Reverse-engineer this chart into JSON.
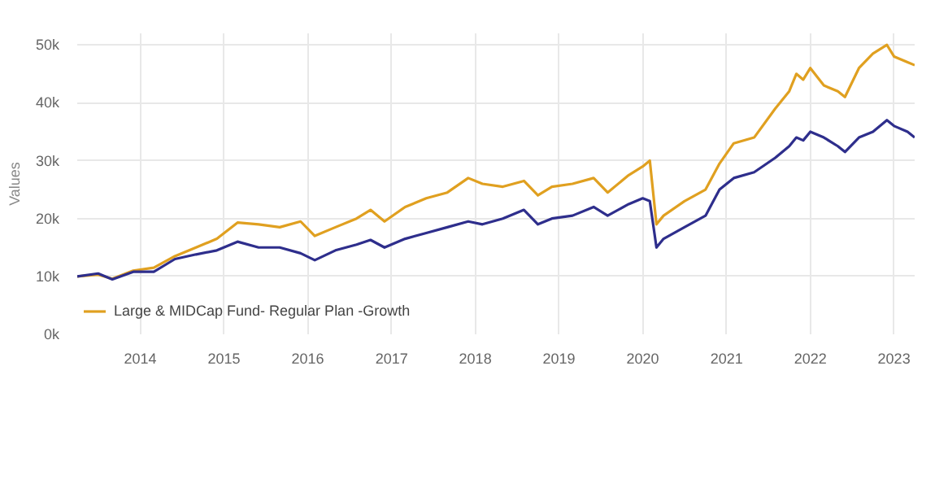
{
  "chart_data": {
    "type": "line",
    "ylabel": "Values",
    "x": [
      "2013-04",
      "2013-07",
      "2013-09",
      "2013-12",
      "2014-03",
      "2014-06",
      "2014-09",
      "2014-12",
      "2015-03",
      "2015-06",
      "2015-09",
      "2015-12",
      "2016-02",
      "2016-05",
      "2016-08",
      "2016-10",
      "2016-12",
      "2017-03",
      "2017-06",
      "2017-09",
      "2017-12",
      "2018-02",
      "2018-05",
      "2018-08",
      "2018-10",
      "2018-12",
      "2019-03",
      "2019-06",
      "2019-08",
      "2019-11",
      "2020-01",
      "2020-02",
      "2020-03",
      "2020-04",
      "2020-07",
      "2020-10",
      "2020-12",
      "2021-02",
      "2021-05",
      "2021-08",
      "2021-10",
      "2021-11",
      "2021-12",
      "2022-01",
      "2022-03",
      "2022-05",
      "2022-06",
      "2022-08",
      "2022-10",
      "2022-12",
      "2023-01",
      "2023-03",
      "2023-04"
    ],
    "series": [
      {
        "name": "Large & MIDCap Fund- Regular Plan -Growth",
        "color": "#e0a020",
        "values": [
          10000,
          10300,
          9600,
          11000,
          11500,
          13500,
          15000,
          16500,
          19300,
          19000,
          18500,
          19500,
          17000,
          18500,
          20000,
          21500,
          19500,
          22000,
          23500,
          24500,
          27000,
          26000,
          25500,
          26500,
          24000,
          25500,
          26000,
          27000,
          24500,
          27500,
          29000,
          30000,
          19000,
          20500,
          23000,
          25000,
          29500,
          33000,
          34000,
          39000,
          42000,
          45000,
          44000,
          46000,
          43000,
          42000,
          41000,
          46000,
          48500,
          50000,
          48000,
          47000,
          46500
        ]
      },
      {
        "color": "#2e2e8c",
        "values": [
          10000,
          10500,
          9500,
          10800,
          10800,
          13000,
          13800,
          14500,
          16000,
          15000,
          15000,
          14000,
          12800,
          14500,
          15500,
          16300,
          15000,
          16500,
          17500,
          18500,
          19500,
          19000,
          20000,
          21500,
          19000,
          20000,
          20500,
          22000,
          20500,
          22500,
          23500,
          23000,
          15000,
          16500,
          18500,
          20500,
          25000,
          27000,
          28000,
          30500,
          32500,
          34000,
          33500,
          35000,
          34000,
          32500,
          31500,
          34000,
          35000,
          37000,
          36000,
          35000,
          34000
        ]
      }
    ],
    "xlim": [
      "2013-04",
      "2023-04"
    ],
    "xticks": [
      "2014",
      "2015",
      "2016",
      "2017",
      "2018",
      "2019",
      "2020",
      "2021",
      "2022",
      "2023"
    ],
    "ylim": [
      0,
      52000
    ],
    "yticks": [
      {
        "value": 0,
        "label": "0k"
      },
      {
        "value": 10000,
        "label": "10k"
      },
      {
        "value": 20000,
        "label": "20k"
      },
      {
        "value": 30000,
        "label": "30k"
      },
      {
        "value": 40000,
        "label": "40k"
      },
      {
        "value": 50000,
        "label": "50k"
      }
    ],
    "grid": true,
    "legend": "bottom left",
    "marker": "none",
    "line_style": "solid"
  }
}
